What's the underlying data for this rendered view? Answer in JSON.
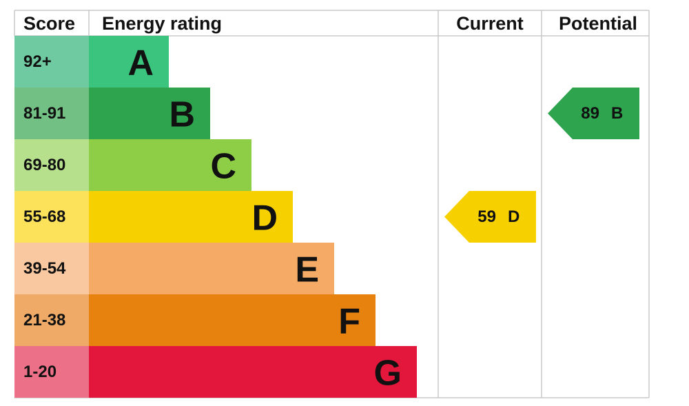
{
  "chart_data": {
    "type": "epc",
    "headers": {
      "score": "Score",
      "rating": "Energy rating",
      "current": "Current",
      "potential": "Potential"
    },
    "bands": [
      {
        "score": "92+",
        "rating": "A",
        "color": "#3ac47d",
        "score_color": "#6fcaa2"
      },
      {
        "score": "81-91",
        "rating": "B",
        "color": "#2ea44f",
        "score_color": "#72c083"
      },
      {
        "score": "69-80",
        "rating": "C",
        "color": "#8dce46",
        "score_color": "#b6e08c"
      },
      {
        "score": "55-68",
        "rating": "D",
        "color": "#f7d000",
        "score_color": "#fce15a"
      },
      {
        "score": "39-54",
        "rating": "E",
        "color": "#f5ab65",
        "score_color": "#f9c8a0"
      },
      {
        "score": "21-38",
        "rating": "F",
        "color": "#e8820e",
        "score_color": "#eeaa66"
      },
      {
        "score": "1-20",
        "rating": "G",
        "color": "#e2173b",
        "score_color": "#ec7088"
      }
    ],
    "current": {
      "score": 59,
      "rating": "D"
    },
    "potential": {
      "score": 89,
      "rating": "B"
    }
  }
}
